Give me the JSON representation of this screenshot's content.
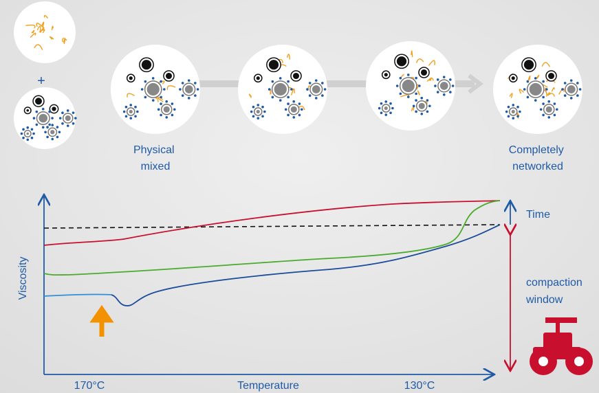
{
  "plus": "+",
  "stage_labels": [
    [
      "Physical",
      "mixed"
    ],
    [
      "Completely",
      "networked"
    ]
  ],
  "axes": {
    "y_label": "Viscosity",
    "x_label": "Temperature",
    "x_left": "170°C",
    "x_right": "130°C"
  },
  "side_labels": {
    "time": "Time",
    "window": [
      "compaction",
      "window"
    ]
  }
}
